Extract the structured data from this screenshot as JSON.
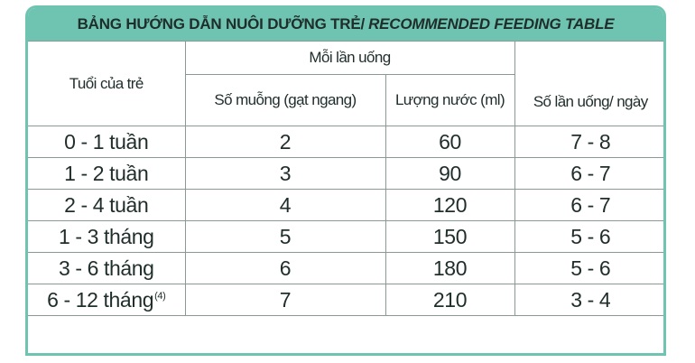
{
  "title": {
    "vi": "BẢNG HƯỚNG DẪN NUÔI DƯỠNG TRẺ/",
    "en": "RECOMMENDED FEEDING TABLE"
  },
  "header": {
    "age": "Tuổi của trẻ",
    "per_feed": "Mỗi lần uống",
    "spoons": "Số muỗng (gạt ngang)",
    "water": "Lượng nước (ml)",
    "times": "Số lần uống/ ngày"
  },
  "rows": [
    {
      "age": "0 - 1 tuần",
      "spoons": "2",
      "water": "60",
      "times": "7 - 8",
      "footnote": ""
    },
    {
      "age": "1 - 2 tuần",
      "spoons": "3",
      "water": "90",
      "times": "6 - 7",
      "footnote": ""
    },
    {
      "age": "2 - 4 tuần",
      "spoons": "4",
      "water": "120",
      "times": "6 - 7",
      "footnote": ""
    },
    {
      "age": "1 - 3 tháng",
      "spoons": "5",
      "water": "150",
      "times": "5 - 6",
      "footnote": ""
    },
    {
      "age": "3 - 6 tháng",
      "spoons": "6",
      "water": "180",
      "times": "5 - 6",
      "footnote": ""
    },
    {
      "age": "6 - 12 tháng",
      "spoons": "7",
      "water": "210",
      "times": "3 - 4",
      "footnote": "(4)"
    }
  ],
  "colors": {
    "accent": "#6fc4b1",
    "text": "#1f2d2b",
    "grid": "#8a9896"
  }
}
